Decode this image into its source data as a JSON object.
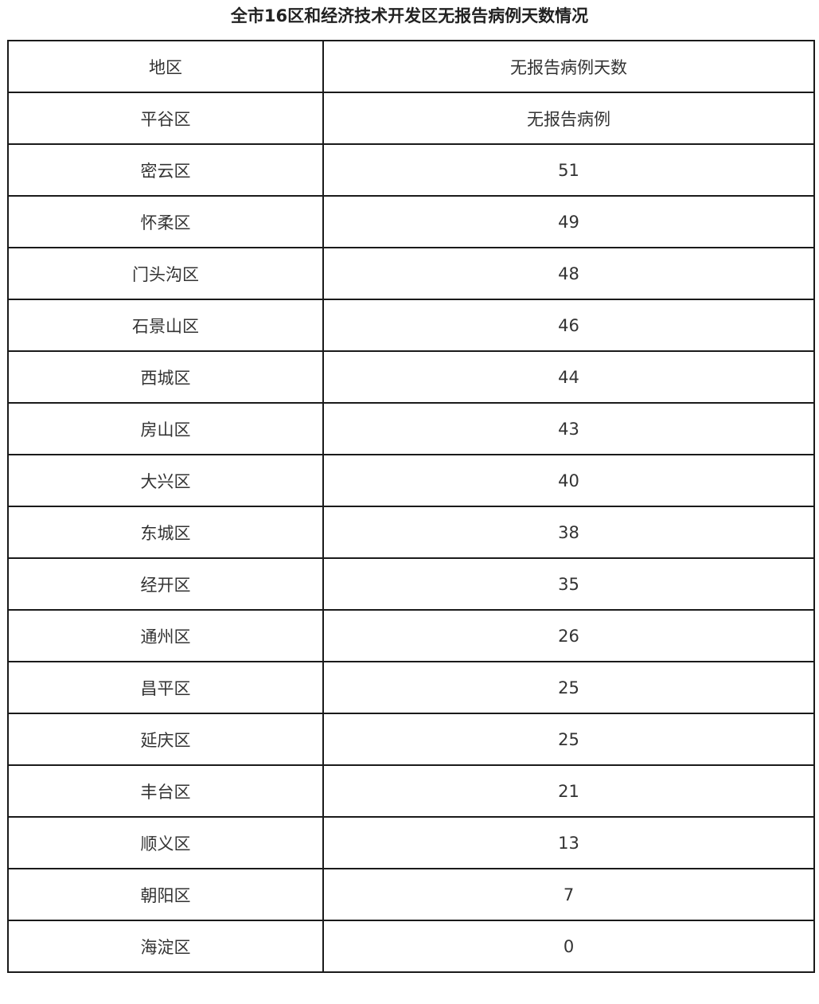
{
  "title": "全市16区和经济技术开发区无报告病例天数情况",
  "table": {
    "headers": [
      "地区",
      "无报告病例天数"
    ],
    "rows": [
      [
        "平谷区",
        "无报告病例"
      ],
      [
        "密云区",
        "51"
      ],
      [
        "怀柔区",
        "49"
      ],
      [
        "门头沟区",
        "48"
      ],
      [
        "石景山区",
        "46"
      ],
      [
        "西城区",
        "44"
      ],
      [
        "房山区",
        "43"
      ],
      [
        "大兴区",
        "40"
      ],
      [
        "东城区",
        "38"
      ],
      [
        "经开区",
        "35"
      ],
      [
        "通州区",
        "26"
      ],
      [
        "昌平区",
        "25"
      ],
      [
        "延庆区",
        "25"
      ],
      [
        "丰台区",
        "21"
      ],
      [
        "顺义区",
        "13"
      ],
      [
        "朝阳区",
        "7"
      ],
      [
        "海淀区",
        "0"
      ]
    ]
  }
}
